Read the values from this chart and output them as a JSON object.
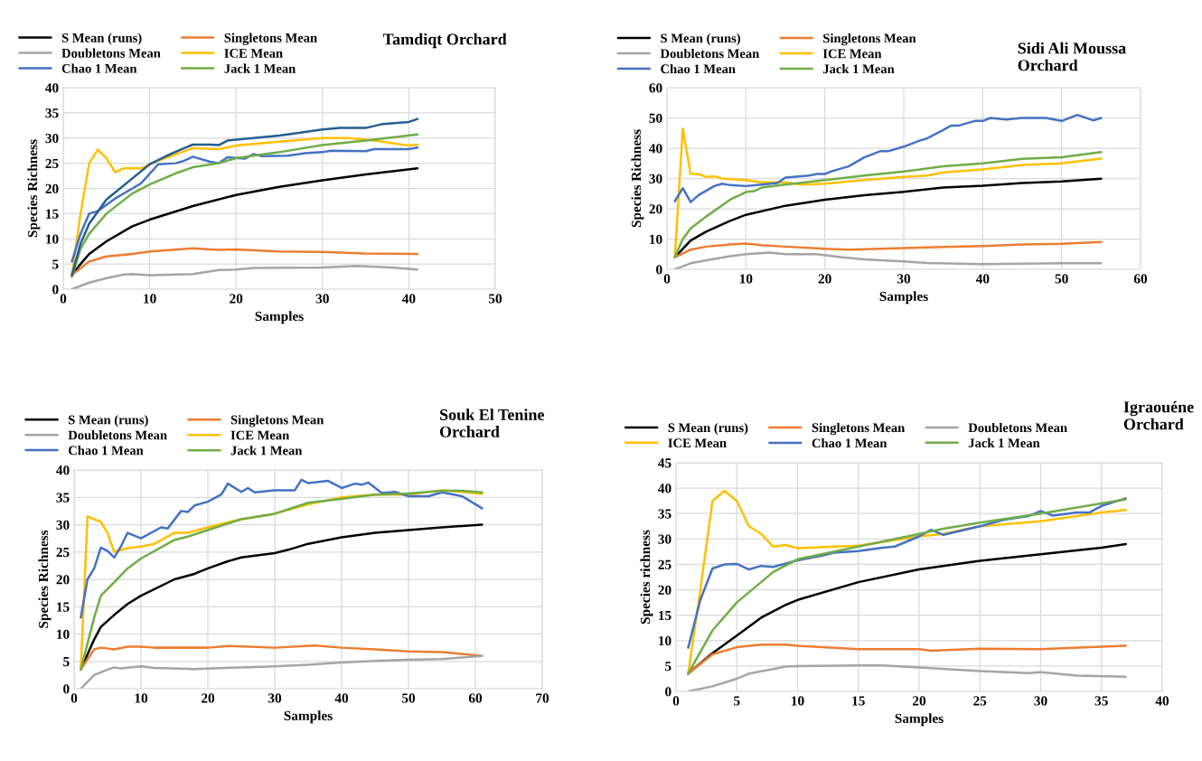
{
  "chart_data": [
    {
      "type": "line",
      "title": "Tamdiqt Orchard",
      "xlabel": "Samples",
      "ylabel": "Species Richness",
      "xlim": [
        0,
        50
      ],
      "xticks": [
        0,
        10,
        20,
        30,
        40,
        50
      ],
      "ylim": [
        0,
        40
      ],
      "yticks": [
        0,
        5,
        10,
        15,
        20,
        25,
        30,
        35,
        40
      ],
      "grid": true,
      "legend": "top left",
      "marker": "none",
      "line_style": "solid",
      "series": [
        {
          "name": "S Mean (runs)",
          "color": "#000000",
          "x": [
            1,
            2,
            3,
            5,
            8,
            10,
            15,
            20,
            25,
            30,
            35,
            41
          ],
          "values": [
            2.8,
            5,
            7,
            9.5,
            12.5,
            13.8,
            16.5,
            18.7,
            20.3,
            21.6,
            22.8,
            24
          ]
        },
        {
          "name": "Singletons Mean",
          "color": "#ed7d31",
          "x": [
            1,
            3,
            5,
            8,
            10,
            15,
            18,
            20,
            25,
            30,
            35,
            41
          ],
          "values": [
            2.8,
            5.5,
            6.5,
            7,
            7.5,
            8.1,
            7.8,
            7.9,
            7.5,
            7.4,
            7.1,
            7
          ]
        },
        {
          "name": "Doubletons Mean",
          "color": "#a5a5a5",
          "x": [
            1,
            3,
            5,
            7,
            8,
            10,
            15,
            18,
            20,
            22,
            30,
            34,
            38,
            41
          ],
          "values": [
            0,
            1.3,
            2.2,
            2.9,
            3.0,
            2.8,
            3.0,
            3.8,
            3.9,
            4.2,
            4.3,
            4.6,
            4.3,
            3.9
          ]
        },
        {
          "name": "ICE Mean",
          "color": "#ffc000",
          "x": [
            1,
            2,
            3,
            4,
            5,
            6,
            7,
            9,
            11,
            15,
            18,
            20,
            25,
            30,
            33,
            36,
            40,
            41
          ],
          "values": [
            2.8,
            15,
            25,
            27.7,
            26,
            23.2,
            24,
            24,
            25.5,
            28,
            27.8,
            28.5,
            29.3,
            30,
            30,
            29.5,
            28.5,
            28.7
          ]
        },
        {
          "name": "Chao 1 Mean",
          "color": "#4472c4",
          "x": [
            1,
            2,
            3,
            4,
            6,
            8,
            9,
            11,
            13,
            14,
            15,
            17,
            18,
            19,
            21,
            22,
            23,
            26,
            28,
            30,
            31,
            35,
            36,
            40,
            41
          ],
          "values": [
            5.5,
            11,
            15,
            15.5,
            18,
            20,
            21,
            24.8,
            25,
            25.5,
            26.3,
            25.3,
            25,
            26.2,
            25.9,
            26.8,
            26.4,
            26.5,
            27,
            27.2,
            27.5,
            27.4,
            27.8,
            27.8,
            28.1
          ]
        },
        {
          "name": "Jack 1 Mean",
          "color": "#70ad47",
          "x": [
            1,
            2,
            3,
            5,
            8,
            10,
            13,
            15,
            18,
            20,
            25,
            30,
            35,
            41
          ],
          "values": [
            2.5,
            8,
            11,
            15,
            19,
            20.8,
            23,
            24.2,
            25,
            26,
            27.2,
            28.6,
            29.5,
            30.7
          ]
        },
        {
          "color": "#255e91",
          "x": [
            1,
            2,
            3,
            5,
            8,
            10,
            12,
            14,
            15,
            17,
            18,
            19,
            22,
            25,
            28,
            30,
            32,
            35,
            37,
            40,
            41
          ],
          "values": [
            2.8,
            9,
            13,
            17.8,
            22,
            24.8,
            26.5,
            28,
            28.7,
            28.7,
            28.6,
            29.5,
            30,
            30.5,
            31.2,
            31.7,
            32,
            32,
            32.8,
            33.2,
            33.8
          ]
        }
      ]
    },
    {
      "type": "line",
      "title": "Sidi Ali Moussa Orchard",
      "xlabel": "Samples",
      "ylabel": "Species Richness",
      "xlim": [
        0,
        60
      ],
      "xticks": [
        0,
        10,
        20,
        30,
        40,
        50,
        60
      ],
      "ylim": [
        0,
        60
      ],
      "yticks": [
        0,
        10,
        20,
        30,
        40,
        50,
        60
      ],
      "grid": true,
      "legend": "top left",
      "marker": "none",
      "line_style": "solid",
      "series": [
        {
          "name": "S Mean (runs)",
          "color": "#000000",
          "x": [
            1,
            3,
            5,
            8,
            10,
            15,
            20,
            25,
            30,
            35,
            40,
            45,
            50,
            55
          ],
          "values": [
            4,
            9.5,
            12.5,
            16,
            18,
            21,
            23,
            24.5,
            25.6,
            27,
            27.6,
            28.5,
            29,
            29.9
          ]
        },
        {
          "name": "Singletons Mean",
          "color": "#ed7d31",
          "x": [
            1,
            3,
            5,
            8,
            10,
            12,
            15,
            20,
            23,
            30,
            35,
            40,
            45,
            50,
            55
          ],
          "values": [
            4,
            6.5,
            7.5,
            8.2,
            8.5,
            8,
            7.5,
            6.8,
            6.5,
            7,
            7.4,
            7.7,
            8.2,
            8.4,
            9
          ]
        },
        {
          "name": "Doubletons Mean",
          "color": "#a5a5a5",
          "x": [
            1,
            3,
            5,
            8,
            10,
            13,
            15,
            19,
            22,
            25,
            30,
            33,
            40,
            50,
            55
          ],
          "values": [
            0,
            2,
            3,
            4.3,
            5,
            5.5,
            5,
            5,
            4,
            3.3,
            2.6,
            2.1,
            1.7,
            2,
            2
          ]
        },
        {
          "name": "ICE Mean",
          "color": "#ffc000",
          "x": [
            1,
            2,
            3,
            4,
            5,
            6,
            7,
            10,
            12,
            15,
            17,
            20,
            25,
            30,
            33,
            35,
            40,
            45,
            50,
            55
          ],
          "values": [
            4,
            46.5,
            31.5,
            31.5,
            30.5,
            30.7,
            30,
            29.5,
            28.7,
            28.7,
            28,
            28.3,
            29.5,
            30.5,
            31,
            32,
            33,
            34.5,
            35,
            36.6
          ]
        },
        {
          "name": "Chao 1 Mean",
          "color": "#4472c4",
          "x": [
            1,
            2,
            3,
            4,
            6,
            7,
            8,
            10,
            12,
            14,
            15,
            18,
            19,
            20,
            21,
            23,
            25,
            27,
            28,
            30,
            32,
            33,
            35,
            36,
            37,
            39,
            40,
            41,
            43,
            45,
            48,
            50,
            52,
            54,
            55
          ],
          "values": [
            22.5,
            26.8,
            22.2,
            24.5,
            27.5,
            28.3,
            27.8,
            27.5,
            28,
            28.5,
            30.3,
            31,
            31.5,
            31.5,
            32.5,
            34,
            37,
            39,
            39,
            40.5,
            42.5,
            43.3,
            46,
            47.5,
            47.5,
            49,
            49,
            50,
            49.5,
            50,
            50,
            49,
            51,
            49.2,
            50
          ]
        },
        {
          "name": "Jack 1 Mean",
          "color": "#70ad47",
          "x": [
            1,
            2,
            3,
            5,
            8,
            10,
            11,
            12,
            15,
            20,
            25,
            30,
            35,
            40,
            45,
            50,
            55
          ],
          "values": [
            4,
            10,
            13.5,
            17.5,
            23,
            25.5,
            25.8,
            27,
            28,
            29.5,
            31,
            32.3,
            34,
            35,
            36.5,
            37,
            38.7
          ]
        }
      ]
    },
    {
      "type": "line",
      "title": "Souk El Tenine Orchard",
      "xlabel": "Samples",
      "ylabel": "Species Richness",
      "xlim": [
        0,
        70
      ],
      "xticks": [
        0,
        10,
        20,
        30,
        40,
        50,
        60,
        70
      ],
      "ylim": [
        0,
        40
      ],
      "yticks": [
        0,
        5,
        10,
        15,
        20,
        25,
        30,
        35,
        40
      ],
      "grid": true,
      "legend": "top left",
      "marker": "none",
      "line_style": "solid",
      "series": [
        {
          "name": "S Mean (runs)",
          "color": "#000000",
          "x": [
            1,
            3,
            4,
            6,
            8,
            10,
            15,
            18,
            20,
            23,
            25,
            30,
            32,
            35,
            40,
            45,
            50,
            55,
            61
          ],
          "values": [
            3.5,
            9,
            11.3,
            13.5,
            15.5,
            17,
            20,
            21,
            22,
            23.3,
            24,
            24.8,
            25.4,
            26.5,
            27.7,
            28.5,
            29,
            29.5,
            30
          ]
        },
        {
          "name": "Singletons Mean",
          "color": "#ed7d31",
          "x": [
            1,
            3,
            4,
            6,
            8,
            10,
            12,
            20,
            23,
            30,
            36,
            40,
            45,
            50,
            55,
            61
          ],
          "values": [
            3.5,
            7.2,
            7.5,
            7.2,
            7.7,
            7.7,
            7.5,
            7.5,
            7.8,
            7.5,
            7.9,
            7.5,
            7.2,
            6.8,
            6.7,
            6
          ]
        },
        {
          "name": "Doubletons Mean",
          "color": "#a5a5a5",
          "x": [
            1,
            3,
            5,
            6,
            7,
            10,
            12,
            18,
            25,
            30,
            35,
            40,
            45,
            50,
            55,
            61
          ],
          "values": [
            0,
            2.5,
            3.5,
            3.9,
            3.7,
            4.1,
            3.8,
            3.6,
            3.9,
            4.1,
            4.4,
            4.8,
            5.1,
            5.3,
            5.4,
            6
          ]
        },
        {
          "name": "ICE Mean",
          "color": "#ffc000",
          "x": [
            1,
            2,
            3,
            4,
            5,
            6,
            8,
            10,
            12,
            15,
            17,
            20,
            25,
            30,
            35,
            40,
            45,
            50,
            55,
            58,
            61
          ],
          "values": [
            3.5,
            31.5,
            31,
            30.5,
            28.5,
            25,
            25.7,
            26,
            26.5,
            28.5,
            28.5,
            29.5,
            31,
            32,
            33.7,
            35,
            35.5,
            35.5,
            36.3,
            36,
            35.6
          ]
        },
        {
          "name": "Chao 1 Mean",
          "color": "#4472c4",
          "x": [
            1,
            2,
            3,
            4,
            5,
            6,
            7,
            8,
            10,
            13,
            14,
            16,
            17,
            18,
            20,
            22,
            23,
            25,
            26,
            27,
            30,
            33,
            34,
            35,
            38,
            40,
            42,
            43,
            44,
            46,
            48,
            50,
            53,
            55,
            58,
            61
          ],
          "values": [
            13,
            20,
            22,
            25.8,
            25.2,
            24,
            26,
            28.5,
            27.5,
            29.5,
            29.3,
            32.5,
            32.3,
            33.5,
            34.2,
            35.5,
            37.5,
            36,
            36.7,
            35.9,
            36.3,
            36.3,
            38.2,
            37.6,
            38,
            36.7,
            37.5,
            37.3,
            37.7,
            35.8,
            36,
            35.2,
            35.2,
            35.9,
            35.2,
            33
          ]
        },
        {
          "name": "Jack 1 Mean",
          "color": "#70ad47",
          "x": [
            1,
            3,
            4,
            6,
            8,
            10,
            15,
            17,
            20,
            25,
            30,
            35,
            40,
            45,
            50,
            55,
            58,
            61
          ],
          "values": [
            3.5,
            13,
            17,
            19.5,
            22,
            23.8,
            27.2,
            27.8,
            29,
            31,
            32,
            34,
            34.7,
            35.5,
            35.7,
            36.2,
            36.2,
            35.9
          ]
        }
      ]
    },
    {
      "type": "line",
      "title": "Igraouéne Orchard",
      "xlabel": "Samples",
      "ylabel": "Species richness",
      "xlim": [
        0,
        40
      ],
      "xticks": [
        0,
        5,
        10,
        15,
        20,
        25,
        30,
        35,
        40
      ],
      "ylim": [
        0,
        45
      ],
      "yticks": [
        0,
        5,
        10,
        15,
        20,
        25,
        30,
        35,
        40,
        45
      ],
      "grid": true,
      "legend": "top left",
      "marker": "none",
      "line_style": "solid",
      "series": [
        {
          "name": "S Mean (runs)",
          "color": "#000000",
          "x": [
            1,
            3,
            5,
            7,
            9,
            10,
            15,
            20,
            25,
            30,
            35,
            37
          ],
          "values": [
            3.5,
            7.5,
            11,
            14.5,
            17,
            18,
            21.5,
            24,
            25.7,
            27,
            28.3,
            29
          ]
        },
        {
          "name": "Singletons Mean",
          "color": "#ed7d31",
          "x": [
            1,
            3,
            5,
            7,
            9,
            10,
            15,
            20,
            21,
            25,
            30,
            35,
            37
          ],
          "values": [
            3.5,
            7.3,
            8.7,
            9.2,
            9.2,
            9,
            8.3,
            8.3,
            8,
            8.4,
            8.3,
            8.8,
            9
          ]
        },
        {
          "name": "Doubletons Mean",
          "color": "#a5a5a5",
          "x": [
            1,
            3,
            5,
            6,
            8,
            9,
            10,
            15,
            17,
            20,
            25,
            29,
            30,
            33,
            37
          ],
          "values": [
            0,
            1,
            2.5,
            3.5,
            4.4,
            4.9,
            5,
            5.1,
            5.1,
            4.7,
            4,
            3.6,
            3.8,
            3.1,
            2.9
          ]
        },
        {
          "name": "ICE Mean",
          "color": "#ffc000",
          "x": [
            1,
            2,
            3,
            4,
            5,
            6,
            7,
            8,
            9,
            10,
            15,
            20,
            22,
            25,
            30,
            35,
            37
          ],
          "values": [
            3.5,
            20,
            37.5,
            39.5,
            37.5,
            32.5,
            31,
            28.5,
            28.8,
            28.2,
            28.7,
            30.5,
            31,
            32.5,
            33.5,
            35.2,
            35.7
          ]
        },
        {
          "name": "Chao 1 Mean",
          "color": "#4472c4",
          "x": [
            1,
            2,
            3,
            4,
            5,
            6,
            7,
            8,
            10,
            12,
            13,
            15,
            17,
            18,
            20,
            21,
            22,
            25,
            27,
            29,
            30,
            31,
            33,
            34,
            35,
            37
          ],
          "values": [
            8.6,
            18,
            24.2,
            25,
            25.1,
            24,
            24.7,
            24.5,
            25.8,
            26.7,
            27.3,
            27.6,
            28.3,
            28.5,
            30.5,
            31.8,
            30.8,
            32.5,
            33.8,
            34.5,
            35.5,
            34.6,
            35.2,
            35.2,
            36.5,
            38
          ]
        },
        {
          "name": "Jack 1 Mean",
          "color": "#70ad47",
          "x": [
            1,
            3,
            5,
            8,
            10,
            15,
            20,
            22,
            25,
            30,
            35,
            37
          ],
          "values": [
            3.5,
            12,
            17.5,
            23.5,
            26,
            28.5,
            31,
            32,
            33.2,
            35,
            37,
            37.8
          ]
        }
      ]
    }
  ]
}
